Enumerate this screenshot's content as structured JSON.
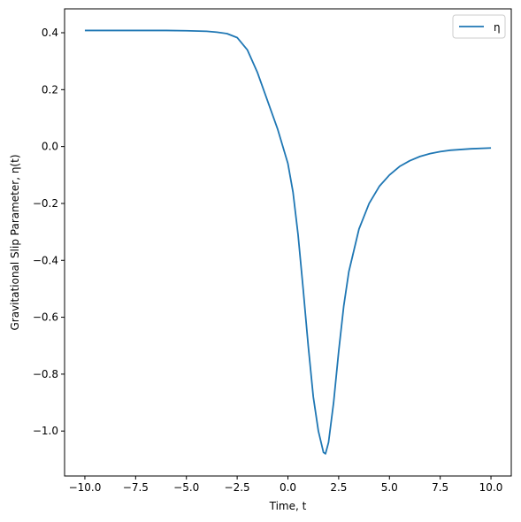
{
  "chart_data": {
    "type": "line",
    "title": "",
    "xlabel": "Time, t",
    "ylabel": "Gravitational Slip Parameter, η(t)",
    "xlim": [
      -11.0,
      11.0
    ],
    "ylim": [
      -1.158,
      0.484
    ],
    "x_ticks": [
      -10.0,
      -7.5,
      -5.0,
      -2.5,
      0.0,
      2.5,
      5.0,
      7.5,
      10.0
    ],
    "x_tick_labels": [
      "−10.0",
      "−7.5",
      "−5.0",
      "−2.5",
      "0.0",
      "2.5",
      "5.0",
      "7.5",
      "10.0"
    ],
    "y_ticks": [
      0.4,
      0.2,
      0.0,
      -0.2,
      -0.4,
      -0.6,
      -0.8,
      -1.0
    ],
    "y_tick_labels": [
      "0.4",
      "0.2",
      "0.0",
      "−0.2",
      "−0.4",
      "−0.6",
      "−0.8",
      "−1.0"
    ],
    "grid": false,
    "legend_position": "top-right",
    "series": [
      {
        "name": "η",
        "color": "#1f77b4",
        "x": [
          -10,
          -9,
          -8,
          -7,
          -6,
          -5,
          -4,
          -3.5,
          -3,
          -2.5,
          -2,
          -1.5,
          -1,
          -0.5,
          0,
          0.25,
          0.5,
          0.75,
          1,
          1.25,
          1.5,
          1.75,
          1.85,
          2,
          2.25,
          2.5,
          2.75,
          3,
          3.5,
          4,
          4.5,
          5,
          5.5,
          6,
          6.5,
          7,
          7.5,
          8,
          9,
          10
        ],
        "y": [
          0.408,
          0.408,
          0.408,
          0.408,
          0.408,
          0.407,
          0.405,
          0.402,
          0.397,
          0.383,
          0.34,
          0.26,
          0.16,
          0.06,
          -0.06,
          -0.16,
          -0.31,
          -0.5,
          -0.7,
          -0.88,
          -1.0,
          -1.075,
          -1.08,
          -1.04,
          -0.9,
          -0.72,
          -0.56,
          -0.44,
          -0.29,
          -0.2,
          -0.14,
          -0.1,
          -0.07,
          -0.05,
          -0.035,
          -0.025,
          -0.018,
          -0.013,
          -0.008,
          -0.005
        ]
      }
    ]
  }
}
